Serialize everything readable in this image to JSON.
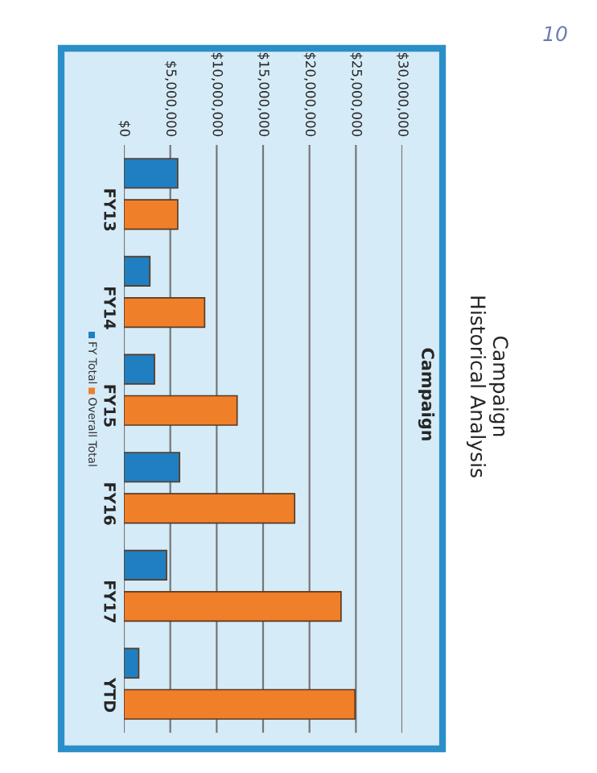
{
  "chart_data": {
    "type": "bar",
    "orientation": "horizontal",
    "title": "Campaign\nHistorical Analysis",
    "subtitle": "Campaign",
    "categories": [
      "FY13",
      "FY14",
      "FY15",
      "FY16",
      "FY17",
      "YTD"
    ],
    "series": [
      {
        "name": "FY Total",
        "color": "#1f7fc0",
        "values": [
          5800000,
          2800000,
          3300000,
          6000000,
          4600000,
          1600000
        ]
      },
      {
        "name": "Overall Total",
        "color": "#f07f2a",
        "values": [
          5800000,
          8700000,
          12200000,
          18400000,
          23400000,
          24900000
        ]
      }
    ],
    "xlim": [
      0,
      30000000
    ],
    "xticks": [
      {
        "value": 0,
        "label": "$0"
      },
      {
        "value": 5000000,
        "label": "$5,000,000"
      },
      {
        "value": 10000000,
        "label": "$10,000,000"
      },
      {
        "value": 15000000,
        "label": "$15,000,000"
      },
      {
        "value": 20000000,
        "label": "$20,000,000"
      },
      {
        "value": 25000000,
        "label": "$25,000,000"
      },
      {
        "value": 30000000,
        "label": "$30,000,000"
      }
    ],
    "grid": "x",
    "legend": "left",
    "annotations": [
      "10"
    ]
  }
}
